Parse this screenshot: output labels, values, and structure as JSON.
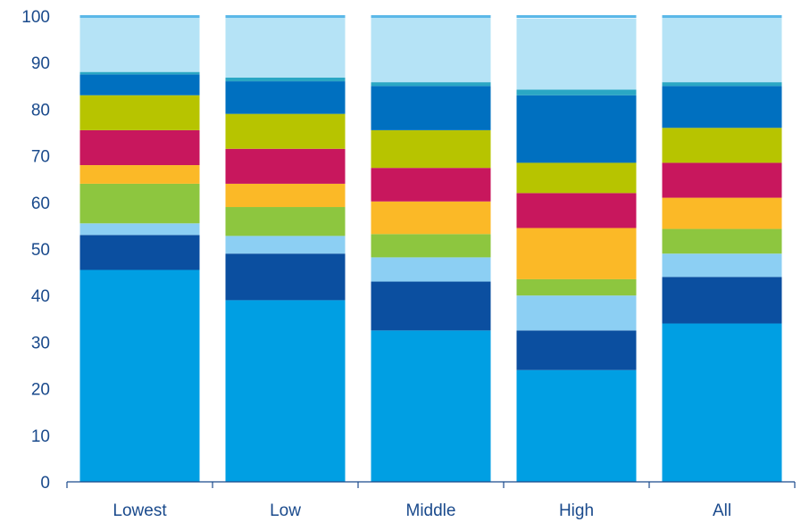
{
  "chart_data": {
    "type": "bar",
    "stacked": true,
    "categories": [
      "Lowest",
      "Low",
      "Middle",
      "High",
      "All"
    ],
    "ylim": [
      0,
      100
    ],
    "yticks": [
      0,
      10,
      20,
      30,
      40,
      50,
      60,
      70,
      80,
      90,
      100
    ],
    "grid": false,
    "series": [
      {
        "color": "#009fe3",
        "values": [
          45.5,
          39.0,
          32.5,
          24.0,
          34.0
        ]
      },
      {
        "color": "#0b4fa0",
        "values": [
          7.5,
          10.0,
          10.5,
          8.5,
          10.0
        ]
      },
      {
        "color": "#8ccff3",
        "values": [
          2.5,
          3.8,
          5.2,
          7.5,
          5.0
        ]
      },
      {
        "color": "#8dc63f",
        "values": [
          8.5,
          6.2,
          5.0,
          3.5,
          5.3
        ]
      },
      {
        "color": "#fbb927",
        "values": [
          4.0,
          5.0,
          7.0,
          11.0,
          6.7
        ]
      },
      {
        "color": "#c8175d",
        "values": [
          7.5,
          7.5,
          7.2,
          7.5,
          7.5
        ]
      },
      {
        "color": "#b7c400",
        "values": [
          7.5,
          7.5,
          8.1,
          6.5,
          7.5
        ]
      },
      {
        "color": "#0070c0",
        "values": [
          4.5,
          7.0,
          9.5,
          14.5,
          9.0
        ]
      },
      {
        "color": "#2aa7c4",
        "values": [
          0.5,
          0.8,
          0.8,
          1.2,
          0.8
        ]
      },
      {
        "color": "#b5e3f6",
        "values": [
          12.0,
          13.2,
          14.2,
          15.3,
          14.2
        ]
      }
    ]
  }
}
